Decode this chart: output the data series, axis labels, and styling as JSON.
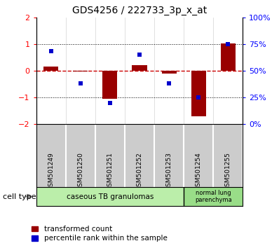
{
  "title": "GDS4256 / 222733_3p_x_at",
  "samples": [
    "GSM501249",
    "GSM501250",
    "GSM501251",
    "GSM501252",
    "GSM501253",
    "GSM501254",
    "GSM501255"
  ],
  "red_bars": [
    0.15,
    -0.02,
    -1.05,
    0.22,
    -0.1,
    -1.72,
    1.02
  ],
  "blue_dot_percentile": [
    68,
    38,
    20,
    65,
    38,
    25,
    75
  ],
  "ylim": [
    -2,
    2
  ],
  "right_ylim": [
    0,
    100
  ],
  "right_yticks": [
    0,
    25,
    50,
    75,
    100
  ],
  "right_yticklabels": [
    "0%",
    "25%",
    "50%",
    "75%",
    "100%"
  ],
  "left_yticks": [
    -2,
    -1,
    0,
    1,
    2
  ],
  "hline_y": 0.0,
  "dotted_hlines": [
    1.0,
    -1.0
  ],
  "bar_color": "#990000",
  "dot_color": "#0000cc",
  "hline_color": "#cc0000",
  "group1_label": "caseous TB granulomas",
  "group1_samples": 5,
  "group2_label": "normal lung\nparenchyma",
  "group2_samples": 2,
  "group_color": "#bbeeaa",
  "sample_box_color": "#cccccc",
  "cell_type_label": "cell type",
  "legend_red": "transformed count",
  "legend_blue": "percentile rank within the sample",
  "bar_width": 0.5
}
